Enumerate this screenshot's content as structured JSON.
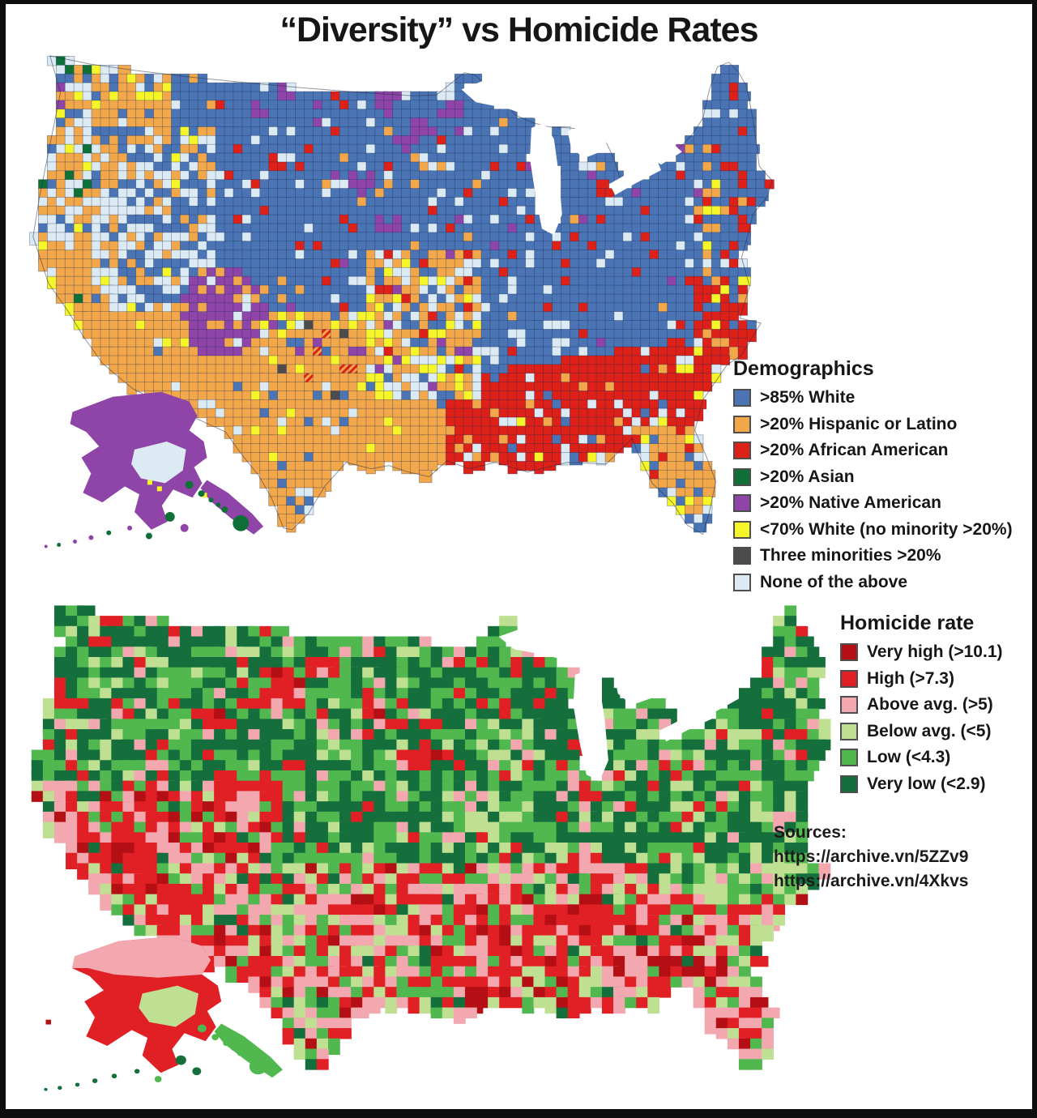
{
  "title": "“Diversity” vs Homicide Rates",
  "demographics_legend": {
    "title": "Demographics",
    "items": [
      {
        "label": ">85% White",
        "color": "#4a74b4"
      },
      {
        "label": ">20% Hispanic or Latino",
        "color": "#f3a74b"
      },
      {
        "label": ">20% African American",
        "color": "#dd2018"
      },
      {
        "label": ">20% Asian",
        "color": "#0e6f37"
      },
      {
        "label": ">20% Native American",
        "color": "#8f44a8"
      },
      {
        "label": "<70% White (no minority >20%)",
        "color": "#f5f52a"
      },
      {
        "label": "Three minorities >20%",
        "color": "#4c4c4c"
      },
      {
        "label": "None of the above",
        "color": "#dbeaf3"
      }
    ]
  },
  "homicide_legend": {
    "title": "Homicide rate",
    "items": [
      {
        "label": "Very high (>10.1)",
        "color": "#b40f15"
      },
      {
        "label": "High (>7.3)",
        "color": "#e02025"
      },
      {
        "label": "Above avg. (>5)",
        "color": "#f2a8ae"
      },
      {
        "label": "Below avg. (<5)",
        "color": "#bfe093"
      },
      {
        "label": "Low (<4.3)",
        "color": "#50b84e"
      },
      {
        "label": "Very low (<2.9)",
        "color": "#156f3c"
      }
    ]
  },
  "sources": {
    "label": "Sources:",
    "links": [
      "https://archive.vn/5ZZv9",
      "https://archive.vn/4Xkvs"
    ]
  },
  "colors": {
    "frame": "#0e0e0e",
    "background": "#ffffff",
    "text": "#161616"
  }
}
